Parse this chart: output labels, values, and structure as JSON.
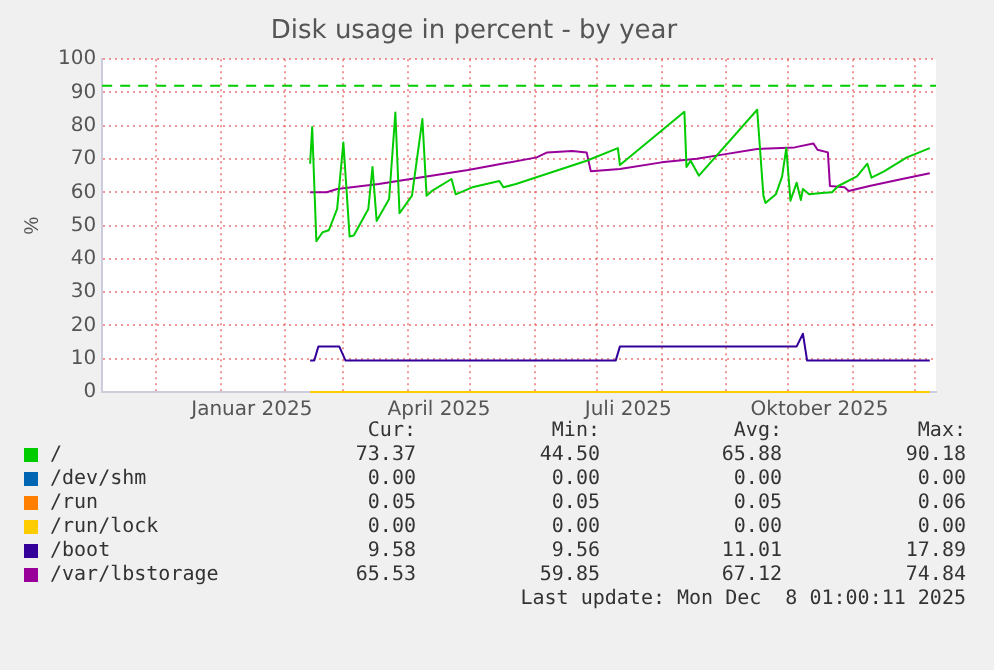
{
  "chart_data": {
    "type": "line",
    "title": "Disk usage in percent - by year",
    "ylabel": "%",
    "xlim": [
      "2024-11-05",
      "2025-12-11"
    ],
    "xticks": [
      {
        "value": "2024-12-01",
        "label": null
      },
      {
        "value": "2025-01-01",
        "label": null
      },
      {
        "value": "2025-01-16",
        "label": "Januar 2025"
      },
      {
        "value": "2025-02-01",
        "label": null
      },
      {
        "value": "2025-03-01",
        "label": null
      },
      {
        "value": "2025-04-01",
        "label": null
      },
      {
        "value": "2025-04-16",
        "label": "April 2025"
      },
      {
        "value": "2025-05-01",
        "label": null
      },
      {
        "value": "2025-06-01",
        "label": null
      },
      {
        "value": "2025-07-01",
        "label": null
      },
      {
        "value": "2025-07-16",
        "label": "Juli 2025"
      },
      {
        "value": "2025-08-01",
        "label": null
      },
      {
        "value": "2025-09-01",
        "label": null
      },
      {
        "value": "2025-10-01",
        "label": null
      },
      {
        "value": "2025-10-16",
        "label": "Oktober 2025"
      },
      {
        "value": "2025-11-01",
        "label": null
      },
      {
        "value": "2025-12-01",
        "label": null
      }
    ],
    "ylim": [
      0,
      100
    ],
    "yticks": [
      0,
      10,
      20,
      30,
      40,
      50,
      60,
      70,
      80,
      90,
      100
    ],
    "grid": true,
    "legend": "bottom",
    "series": [
      {
        "name": "/",
        "color": "#00cc00",
        "x": [
          "2025-02-13",
          "2025-02-14",
          "2025-02-16",
          "2025-02-19",
          "2025-02-22",
          "2025-02-26",
          "2025-03-01",
          "2025-03-04",
          "2025-03-06",
          "2025-03-13",
          "2025-03-15",
          "2025-03-17",
          "2025-03-23",
          "2025-03-26",
          "2025-03-28",
          "2025-04-03",
          "2025-04-08",
          "2025-04-10",
          "2025-04-13",
          "2025-04-22",
          "2025-04-24",
          "2025-05-02",
          "2025-05-15",
          "2025-05-17",
          "2025-05-23",
          "2025-06-26",
          "2025-07-11",
          "2025-07-12",
          "2025-08-12",
          "2025-08-13",
          "2025-08-15",
          "2025-08-19",
          "2025-09-16",
          "2025-09-19",
          "2025-09-20",
          "2025-09-25",
          "2025-09-28",
          "2025-09-30",
          "2025-10-02",
          "2025-10-05",
          "2025-10-07",
          "2025-10-08",
          "2025-10-11",
          "2025-10-17",
          "2025-10-22",
          "2025-10-25",
          "2025-11-03",
          "2025-11-08",
          "2025-11-10",
          "2025-11-16",
          "2025-11-27",
          "2025-12-08"
        ],
        "values": [
          68.6,
          79.6,
          45.3,
          48,
          48.6,
          55,
          75,
          46.7,
          47,
          55,
          67.6,
          51.4,
          58,
          84,
          53.7,
          59,
          82,
          59,
          60.6,
          64,
          59.4,
          61.5,
          63.4,
          61.5,
          62.5,
          69.5,
          73.3,
          68.2,
          84.2,
          67.6,
          69.5,
          65,
          84.8,
          59,
          56.8,
          59.4,
          64.8,
          73.3,
          57.5,
          62.9,
          57.7,
          61,
          59.4,
          59.8,
          60,
          61.9,
          64.8,
          68.6,
          64.4,
          66.3,
          70.5,
          73.3
        ]
      },
      {
        "name": "/dev/shm",
        "color": "#0066b3"
      },
      {
        "name": "/run",
        "color": "#ff8000"
      },
      {
        "name": "/run/lock",
        "color": "#ffcc00",
        "x": [
          "2025-02-13",
          "2025-12-08"
        ],
        "values": [
          0,
          0
        ]
      },
      {
        "name": "/boot",
        "color": "#330099",
        "x": [
          "2025-02-13",
          "2025-02-15",
          "2025-02-17",
          "2025-02-27",
          "2025-03-02",
          "2025-07-10",
          "2025-07-12",
          "2025-10-05",
          "2025-10-08",
          "2025-10-10",
          "2025-12-08"
        ],
        "values": [
          9.5,
          9.5,
          13.7,
          13.7,
          9.5,
          9.5,
          13.7,
          13.7,
          17.5,
          9.5,
          9.5
        ]
      },
      {
        "name": "/var/lbstorage",
        "color": "#990099",
        "x": [
          "2025-02-13",
          "2025-02-21",
          "2025-02-26",
          "2025-03-18",
          "2025-03-31",
          "2025-04-20",
          "2025-04-30",
          "2025-05-13",
          "2025-06-02",
          "2025-06-07",
          "2025-06-19",
          "2025-06-26",
          "2025-06-28",
          "2025-07-12",
          "2025-08-01",
          "2025-08-18",
          "2025-08-31",
          "2025-09-16",
          "2025-10-04",
          "2025-10-13",
          "2025-10-15",
          "2025-10-20",
          "2025-10-21",
          "2025-10-28",
          "2025-10-30",
          "2025-11-09",
          "2025-11-23",
          "2025-12-08"
        ],
        "values": [
          60,
          60,
          61,
          62.5,
          63.8,
          65.7,
          66.7,
          68.2,
          70.5,
          72,
          72.4,
          72,
          66.3,
          67,
          69,
          70.1,
          71.4,
          73,
          73.5,
          74.7,
          72.8,
          72,
          61.9,
          61.5,
          60.4,
          61.9,
          63.8,
          65.7
        ]
      }
    ],
    "ref_lines": [
      {
        "axis": "y",
        "value": 92,
        "color": "#00cc00",
        "line_style": "dashed"
      }
    ],
    "annotations": [
      "Cur:",
      "Min:",
      "Avg:",
      "Max:",
      "73.37",
      "44.50",
      "65.88",
      "90.18",
      "0.00",
      "0.00",
      "0.00",
      "0.00",
      "0.05",
      "0.05",
      "0.05",
      "0.06",
      "0.00",
      "0.00",
      "0.00",
      "0.00",
      "9.58",
      "9.56",
      "11.01",
      "17.89",
      "65.53",
      "59.85",
      "67.12",
      "74.84",
      "Last update: Mon Dec  8 01:00:11 2025"
    ]
  }
}
